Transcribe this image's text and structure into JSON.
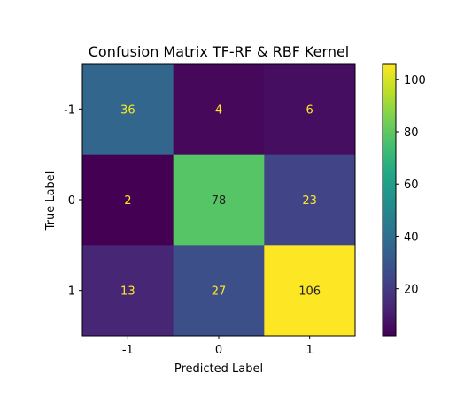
{
  "chart_data": {
    "type": "heatmap",
    "title": "Confusion Matrix TF-RF & RBF Kernel",
    "xlabel": "Predicted Label",
    "ylabel": "True Label",
    "x_categories": [
      "-1",
      "0",
      "1"
    ],
    "y_categories": [
      "-1",
      "0",
      "1"
    ],
    "values": [
      [
        36,
        4,
        6
      ],
      [
        2,
        78,
        23
      ],
      [
        13,
        27,
        106
      ]
    ],
    "colormap": "viridis",
    "colorbar": {
      "range": [
        2,
        106
      ],
      "ticks": [
        20,
        40,
        60,
        80,
        100
      ]
    },
    "grid": false
  }
}
